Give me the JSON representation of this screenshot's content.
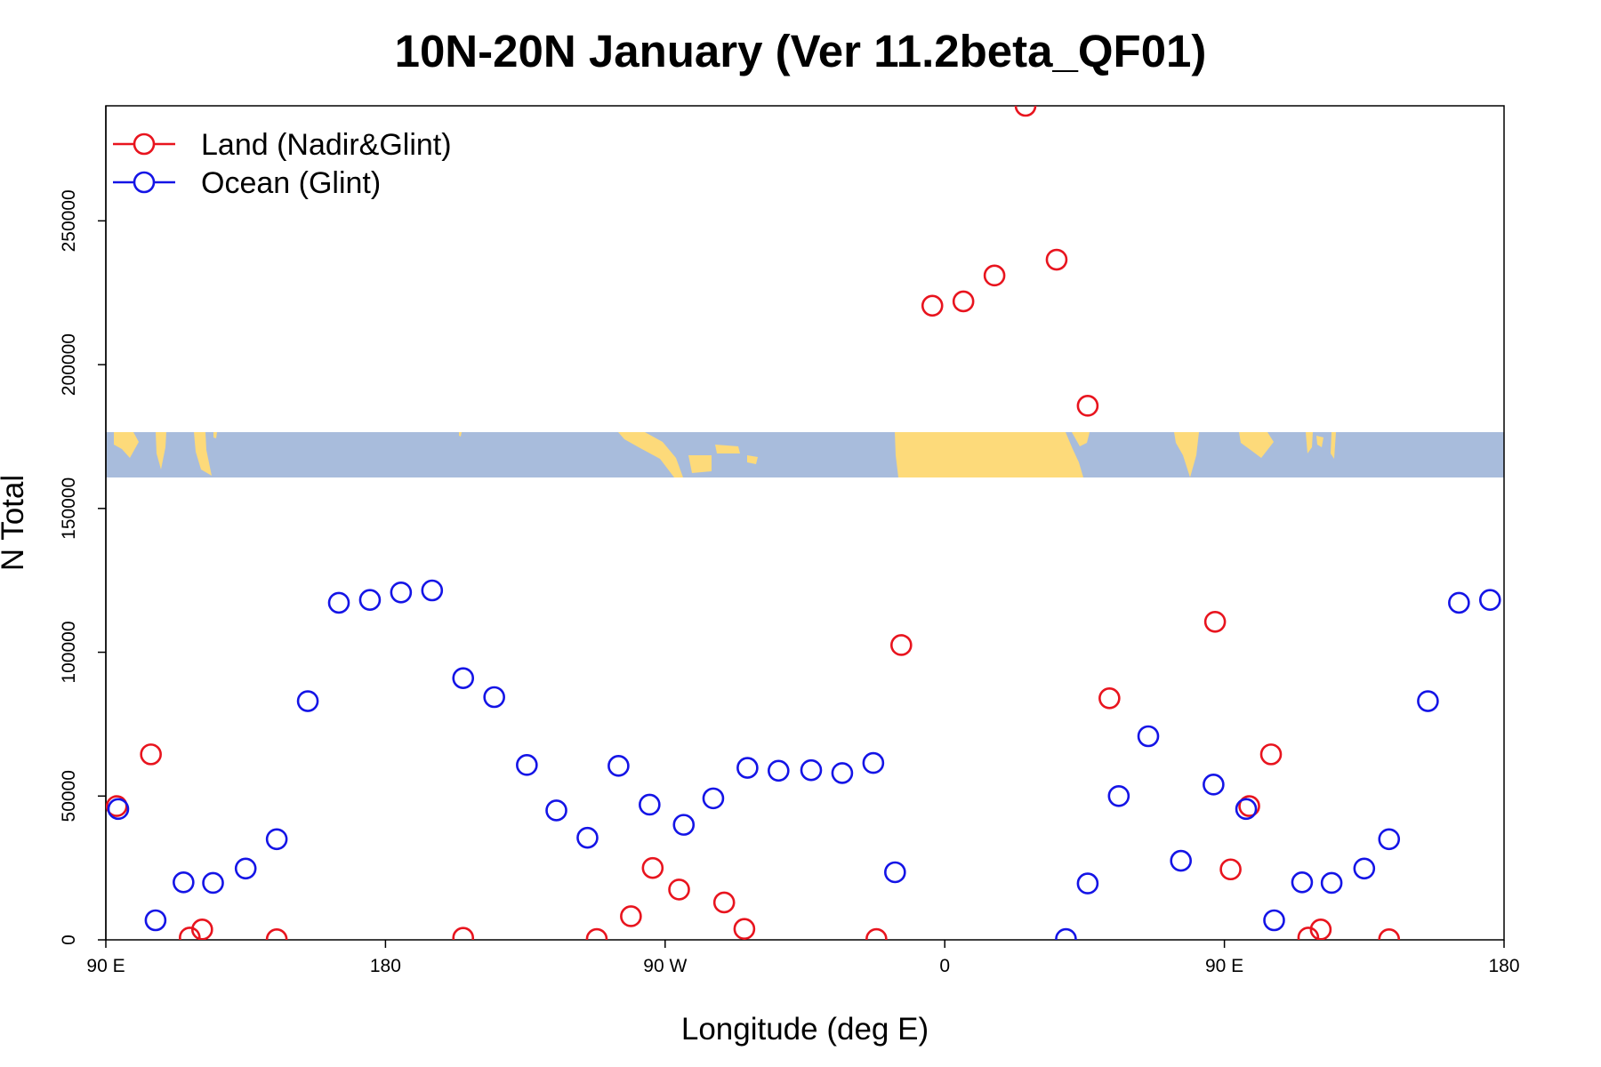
{
  "chart_data": {
    "type": "scatter",
    "title": "10N-20N January (Ver 11.2beta_QF01)",
    "xlabel": "Longitude (deg E)",
    "ylabel": "N Total",
    "x_display_range": [
      90,
      540
    ],
    "ylim": [
      0,
      290000
    ],
    "x_ticks": [
      {
        "value": 90,
        "label": "90 E"
      },
      {
        "value": 180,
        "label": "180"
      },
      {
        "value": 270,
        "label": "90 W"
      },
      {
        "value": 360,
        "label": "0"
      },
      {
        "value": 450,
        "label": "90 E"
      },
      {
        "value": 540,
        "label": "180"
      }
    ],
    "y_ticks": [
      {
        "value": 0,
        "label": "0"
      },
      {
        "value": 50000,
        "label": "50000"
      },
      {
        "value": 100000,
        "label": "100000"
      },
      {
        "value": 150000,
        "label": "150000"
      },
      {
        "value": 200000,
        "label": "200000"
      },
      {
        "value": 250000,
        "label": "250000"
      }
    ],
    "legend_position": "top-left",
    "map_strip": {
      "description_free": true,
      "ocean_color": "#a8bcdc",
      "land_color": "#fdda7a"
    },
    "series": [
      {
        "name": "Land (Nadir&Glint)",
        "color": "#e8141e",
        "points": [
          [
            93.5,
            46500
          ],
          [
            104.5,
            64500
          ],
          [
            117,
            800
          ],
          [
            121,
            3600
          ],
          [
            145,
            200
          ],
          [
            205,
            700
          ],
          [
            248,
            300
          ],
          [
            259,
            8200
          ],
          [
            266,
            25000
          ],
          [
            274.5,
            17500
          ],
          [
            289,
            13000
          ],
          [
            295.5,
            3800
          ],
          [
            338,
            300
          ],
          [
            346,
            102500
          ],
          [
            356,
            220500
          ],
          [
            366,
            222000
          ],
          [
            376,
            231000
          ],
          [
            386,
            290000
          ],
          [
            396,
            236500
          ],
          [
            406,
            185700
          ],
          [
            413,
            84000
          ],
          [
            447,
            110600
          ],
          [
            452,
            24500
          ],
          [
            458,
            46500
          ],
          [
            465,
            64500
          ],
          [
            477,
            800
          ],
          [
            481,
            3600
          ],
          [
            503,
            200
          ]
        ]
      },
      {
        "name": "Ocean (Glint)",
        "color": "#1414e6",
        "points": [
          [
            94,
            45500
          ],
          [
            106,
            6800
          ],
          [
            115,
            20000
          ],
          [
            124.5,
            19800
          ],
          [
            135,
            24800
          ],
          [
            145,
            35000
          ],
          [
            155,
            83000
          ],
          [
            165,
            117200
          ],
          [
            175,
            118200
          ],
          [
            185,
            120800
          ],
          [
            195,
            121500
          ],
          [
            205,
            91000
          ],
          [
            215,
            84400
          ],
          [
            225.5,
            60800
          ],
          [
            235,
            45000
          ],
          [
            245,
            35500
          ],
          [
            255,
            60500
          ],
          [
            265,
            47000
          ],
          [
            276,
            40000
          ],
          [
            285.5,
            49200
          ],
          [
            296.5,
            59800
          ],
          [
            306.5,
            58800
          ],
          [
            317,
            59000
          ],
          [
            327,
            58000
          ],
          [
            337,
            61500
          ],
          [
            344,
            23500
          ],
          [
            399,
            300
          ],
          [
            406,
            19600
          ],
          [
            416,
            50000
          ],
          [
            425.5,
            70800
          ],
          [
            436,
            27500
          ],
          [
            446.5,
            54000
          ],
          [
            457,
            45500
          ],
          [
            466,
            6800
          ],
          [
            475,
            20000
          ],
          [
            484.5,
            19800
          ],
          [
            495,
            24800
          ],
          [
            503,
            35000
          ],
          [
            515.5,
            83000
          ],
          [
            525.5,
            117200
          ],
          [
            535.5,
            118200
          ]
        ]
      }
    ]
  }
}
